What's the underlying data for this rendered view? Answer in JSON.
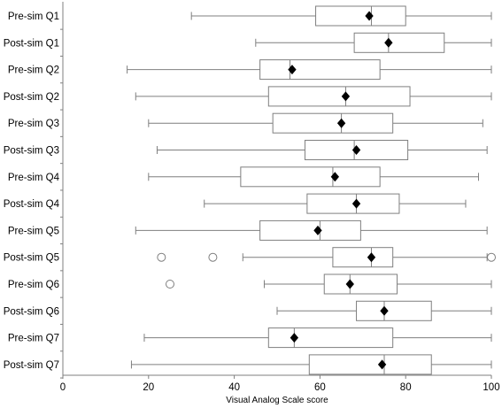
{
  "chart_data": {
    "type": "boxplot",
    "orientation": "horizontal",
    "xlabel": "Visual Analog Scale score",
    "xlim": [
      0,
      100
    ],
    "xticks": [
      0,
      20,
      40,
      60,
      80,
      100
    ],
    "grid": false,
    "legend": "none",
    "colors": {
      "box_fill": "#ffffff",
      "box_stroke": "#7f7f7f",
      "mean_marker": "#000000",
      "axis": "#7f7f7f"
    },
    "series": [
      {
        "category": "Pre-sim Q1",
        "min": 30,
        "q1": 59,
        "median": 72,
        "q3": 80,
        "max": 100,
        "mean": 71.5,
        "outliers": []
      },
      {
        "category": "Post-sim Q1",
        "min": 45,
        "q1": 68,
        "median": 76,
        "q3": 89,
        "max": 100,
        "mean": 76,
        "outliers": []
      },
      {
        "category": "Pre-sim Q2",
        "min": 15,
        "q1": 46,
        "median": 53,
        "q3": 74,
        "max": 100,
        "mean": 53.5,
        "outliers": []
      },
      {
        "category": "Post-sim Q2",
        "min": 17,
        "q1": 48,
        "median": 66,
        "q3": 81,
        "max": 100,
        "mean": 66,
        "outliers": []
      },
      {
        "category": "Pre-sim Q3",
        "min": 20,
        "q1": 49,
        "median": 65,
        "q3": 77,
        "max": 98,
        "mean": 65,
        "outliers": []
      },
      {
        "category": "Post-sim Q3",
        "min": 22,
        "q1": 56.5,
        "median": 68,
        "q3": 80.5,
        "max": 99,
        "mean": 68.5,
        "outliers": []
      },
      {
        "category": "Pre-sim Q4",
        "min": 20,
        "q1": 41.5,
        "median": 63,
        "q3": 74,
        "max": 97,
        "mean": 63.5,
        "outliers": []
      },
      {
        "category": "Post-sim Q4",
        "min": 33,
        "q1": 57,
        "median": 68.5,
        "q3": 78.5,
        "max": 94,
        "mean": 68.5,
        "outliers": []
      },
      {
        "category": "Pre-sim Q5",
        "min": 17,
        "q1": 46,
        "median": 60,
        "q3": 69.5,
        "max": 99,
        "mean": 59.5,
        "outliers": []
      },
      {
        "category": "Post-sim Q5",
        "min": 42,
        "q1": 63,
        "median": 72,
        "q3": 77,
        "max": 99,
        "mean": 72,
        "outliers": [
          23,
          35,
          100
        ]
      },
      {
        "category": "Pre-sim Q6",
        "min": 47,
        "q1": 61,
        "median": 67,
        "q3": 78,
        "max": 100,
        "mean": 67,
        "outliers": [
          25
        ]
      },
      {
        "category": "Post-sim Q6",
        "min": 50,
        "q1": 68.5,
        "median": 75,
        "q3": 86,
        "max": 100,
        "mean": 75,
        "outliers": []
      },
      {
        "category": "Pre-sim Q7",
        "min": 19,
        "q1": 48,
        "median": 54,
        "q3": 77,
        "max": 100,
        "mean": 54,
        "outliers": []
      },
      {
        "category": "Post-sim Q7",
        "min": 16,
        "q1": 57.5,
        "median": 75,
        "q3": 86,
        "max": 100,
        "mean": 74.5,
        "outliers": []
      }
    ]
  }
}
